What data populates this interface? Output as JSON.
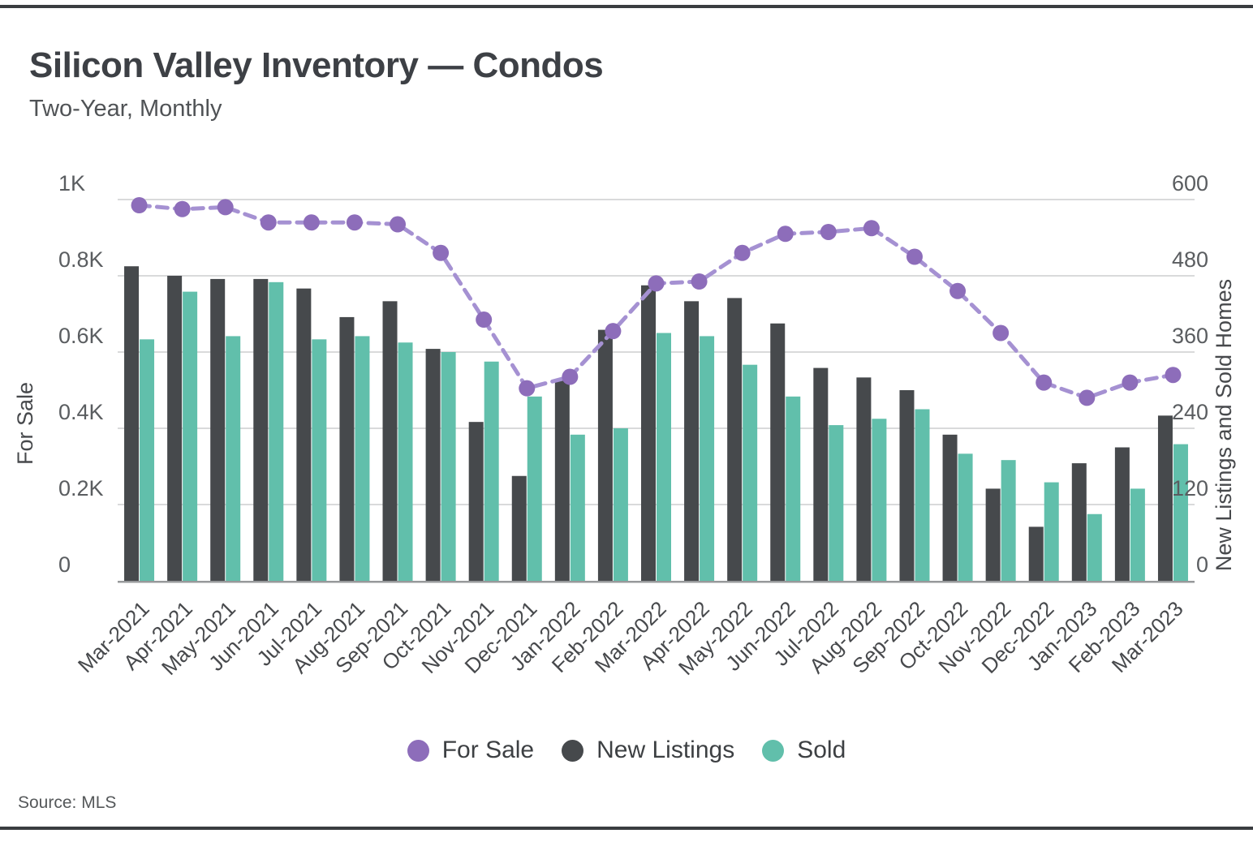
{
  "header": {
    "title": "Silicon Valley Inventory — Condos",
    "subtitle": "Two-Year, Monthly"
  },
  "source": "Source: MLS",
  "legend": {
    "items": [
      {
        "label": "For Sale",
        "color": "#8d6dba"
      },
      {
        "label": "New Listings",
        "color": "#46494c"
      },
      {
        "label": "Sold",
        "color": "#61bfab"
      }
    ]
  },
  "chart_data": {
    "type": "combo",
    "categories": [
      "Mar-2021",
      "Apr-2021",
      "May-2021",
      "Jun-2021",
      "Jul-2021",
      "Aug-2021",
      "Sep-2021",
      "Oct-2021",
      "Nov-2021",
      "Dec-2021",
      "Jan-2022",
      "Feb-2022",
      "Mar-2022",
      "Apr-2022",
      "May-2022",
      "Jun-2022",
      "Jul-2022",
      "Aug-2022",
      "Sep-2022",
      "Oct-2022",
      "Nov-2022",
      "Dec-2022",
      "Jan-2023",
      "Feb-2023",
      "Mar-2023"
    ],
    "series": [
      {
        "name": "For Sale",
        "type": "line",
        "axis": "left",
        "line_color": "#a591d2",
        "marker_color": "#8d6dba",
        "values": [
          985,
          975,
          980,
          940,
          940,
          940,
          935,
          860,
          685,
          505,
          535,
          655,
          780,
          785,
          860,
          910,
          915,
          925,
          850,
          760,
          650,
          520,
          480,
          520,
          540
        ]
      },
      {
        "name": "New Listings",
        "type": "bar",
        "axis": "right",
        "color": "#46494c",
        "values": [
          495,
          480,
          475,
          475,
          460,
          415,
          440,
          365,
          250,
          165,
          315,
          395,
          465,
          440,
          445,
          405,
          335,
          320,
          300,
          230,
          145,
          85,
          185,
          210,
          260
        ]
      },
      {
        "name": "Sold",
        "type": "bar",
        "axis": "right",
        "color": "#61bfab",
        "values": [
          380,
          455,
          385,
          470,
          380,
          385,
          375,
          360,
          345,
          290,
          230,
          240,
          390,
          385,
          340,
          290,
          245,
          255,
          270,
          200,
          190,
          155,
          105,
          145,
          215
        ]
      }
    ],
    "left_axis": {
      "title": "For Sale",
      "min": 0,
      "max": 1000,
      "ticks": [
        "0",
        "0.2K",
        "0.4K",
        "0.6K",
        "0.8K",
        "1K"
      ]
    },
    "right_axis": {
      "title": "New Listings and Sold Homes",
      "min": 0,
      "max": 600,
      "ticks": [
        "0",
        "120",
        "240",
        "360",
        "480",
        "600"
      ]
    },
    "grid": true,
    "legend_position": "bottom",
    "colors": {
      "gridline": "#d9dadb",
      "axis_line": "#97999b",
      "tick_label": "#5a5d60",
      "x_label": "#47494c",
      "axis_title": "#47494c"
    }
  }
}
